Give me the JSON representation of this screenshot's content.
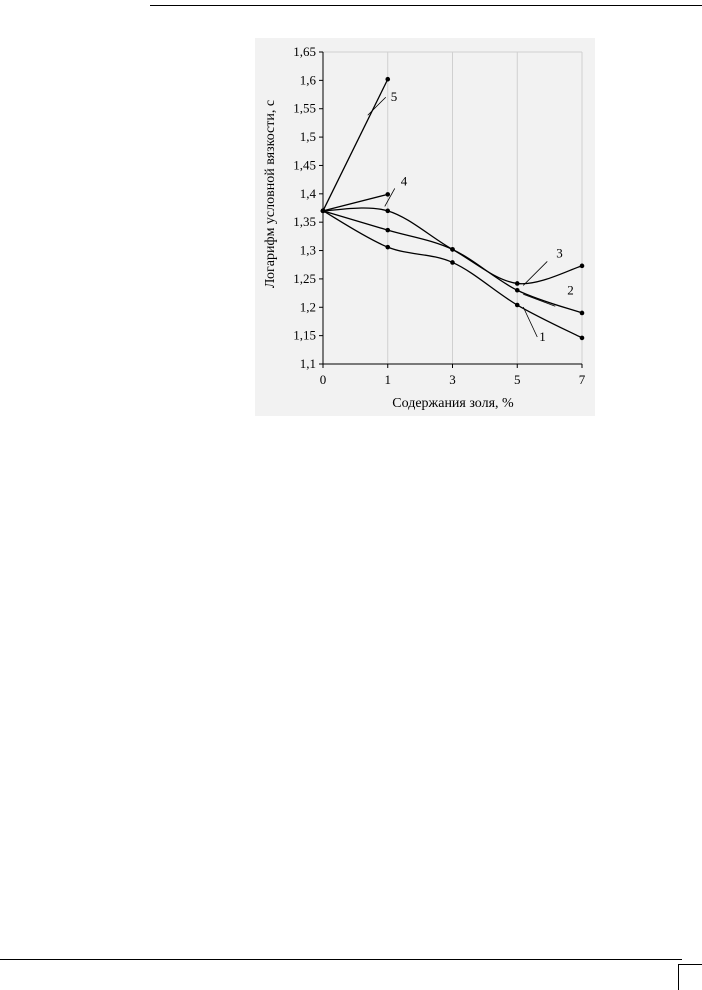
{
  "chart_data": {
    "type": "line",
    "title": "",
    "xlabel": "Содержания золя, %",
    "ylabel": "Логарифм условной вязкости, с",
    "x_categories": [
      "0",
      "1",
      "3",
      "5",
      "7"
    ],
    "ylim": [
      1.1,
      1.65
    ],
    "y_ticks": [
      1.1,
      1.15,
      1.2,
      1.25,
      1.3,
      1.35,
      1.4,
      1.45,
      1.5,
      1.55,
      1.6,
      1.65
    ],
    "y_tick_labels": [
      "1,1",
      "1,15",
      "1,2",
      "1,25",
      "1,3",
      "1,35",
      "1,4",
      "1,45",
      "1,5",
      "1,55",
      "1,6",
      "1,65"
    ],
    "grid": "vertical",
    "series": [
      {
        "name": "1",
        "x": [
          "0",
          "1",
          "3",
          "5",
          "7"
        ],
        "values": [
          1.37,
          1.306,
          1.279,
          1.204,
          1.146
        ]
      },
      {
        "name": "2",
        "x": [
          "0",
          "1",
          "3",
          "5",
          "7"
        ],
        "values": [
          1.37,
          1.336,
          1.302,
          1.23,
          1.19
        ]
      },
      {
        "name": "3",
        "x": [
          "0",
          "1",
          "3",
          "5",
          "7"
        ],
        "values": [
          1.37,
          1.37,
          1.302,
          1.242,
          1.273
        ]
      },
      {
        "name": "4",
        "x": [
          "0",
          "1"
        ],
        "values": [
          1.37,
          1.399
        ]
      },
      {
        "name": "5",
        "x": [
          "0",
          "1"
        ],
        "values": [
          1.37,
          1.602
        ]
      }
    ],
    "annotations": [
      "1",
      "2",
      "3",
      "4",
      "5"
    ],
    "colors": {
      "line": "#000000",
      "background": "#f2f2f2",
      "grid": "#d0d0d0"
    }
  }
}
